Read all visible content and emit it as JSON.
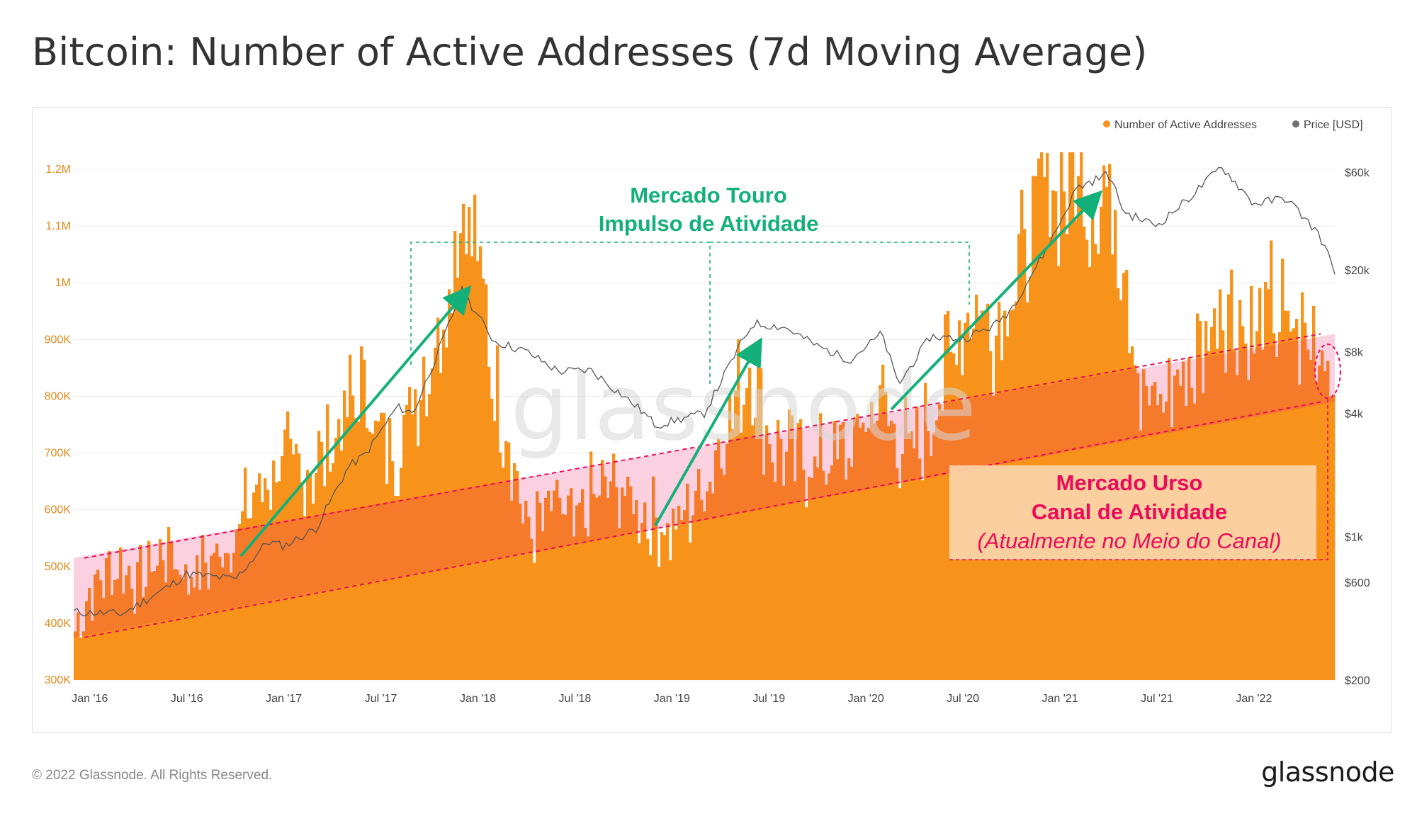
{
  "title": "Bitcoin: Number of Active Addresses (7d Moving Average)",
  "footer": {
    "copyright": "© 2022 Glassnode. All Rights Reserved.",
    "logo": "glassnode"
  },
  "watermark": "glassnode",
  "legend": {
    "items": [
      {
        "label": "Number of Active Addresses",
        "color": "#f7931a"
      },
      {
        "label": "Price [USD]",
        "color": "#707070"
      }
    ]
  },
  "annotations": {
    "bull_title_1": "Mercado Touro",
    "bull_title_2": "Impulso de Atividade",
    "bear_title_1": "Mercado Urso",
    "bear_title_2": "Canal de Atividade",
    "bear_note": "(Atualmente no Meio do Canal)"
  },
  "colors": {
    "bars": "#f7931a",
    "bars_dark": "#f57a2a",
    "channel_fill": "#fbd0e0",
    "channel_line": "#ec0a5a",
    "bull_green": "#14b07a",
    "price_line": "#555555",
    "left_axis_text": "#e08a1a",
    "right_axis_text": "#444444"
  },
  "chart_data": {
    "type": "bar",
    "xlabel": "",
    "ylabel": "",
    "x_ticks": [
      "Jan '16",
      "Jul '16",
      "Jan '17",
      "Jul '17",
      "Jan '18",
      "Jul '18",
      "Jan '19",
      "Jul '19",
      "Jan '20",
      "Jul '20",
      "Jan '21",
      "Jul '21",
      "Jan '22"
    ],
    "y_left_ticks": [
      "300K",
      "400K",
      "500K",
      "600K",
      "700K",
      "800K",
      "900K",
      "1M",
      "1.1M",
      "1.2M"
    ],
    "y_right_ticks": [
      "$200",
      "$600",
      "$1k",
      "$4k",
      "$8k",
      "$20k",
      "$60k"
    ],
    "ylim_left": [
      300000,
      1230000
    ],
    "y_right_scale": "log",
    "ylim_right": [
      200,
      75000
    ],
    "x_range": [
      "2015-12",
      "2022-06"
    ],
    "series": [
      {
        "name": "Number of Active Addresses",
        "axis": "left",
        "x": [
          "2015-12",
          "2016-01",
          "2016-02",
          "2016-03",
          "2016-04",
          "2016-05",
          "2016-06",
          "2016-07",
          "2016-08",
          "2016-09",
          "2016-10",
          "2016-11",
          "2016-12",
          "2017-01",
          "2017-02",
          "2017-03",
          "2017-04",
          "2017-05",
          "2017-06",
          "2017-07",
          "2017-08",
          "2017-09",
          "2017-10",
          "2017-11",
          "2017-12",
          "2018-01",
          "2018-02",
          "2018-03",
          "2018-04",
          "2018-05",
          "2018-06",
          "2018-07",
          "2018-08",
          "2018-09",
          "2018-10",
          "2018-11",
          "2018-12",
          "2019-01",
          "2019-02",
          "2019-03",
          "2019-04",
          "2019-05",
          "2019-06",
          "2019-07",
          "2019-08",
          "2019-09",
          "2019-10",
          "2019-11",
          "2019-12",
          "2020-01",
          "2020-02",
          "2020-03",
          "2020-04",
          "2020-05",
          "2020-06",
          "2020-07",
          "2020-08",
          "2020-09",
          "2020-10",
          "2020-11",
          "2020-12",
          "2021-01",
          "2021-02",
          "2021-03",
          "2021-04",
          "2021-05",
          "2021-06",
          "2021-07",
          "2021-08",
          "2021-09",
          "2021-10",
          "2021-11",
          "2021-12",
          "2022-01",
          "2022-02",
          "2022-03",
          "2022-04",
          "2022-05",
          "2022-06"
        ],
        "values": [
          380000,
          450000,
          490000,
          500000,
          470000,
          510000,
          530000,
          480000,
          500000,
          520000,
          560000,
          620000,
          650000,
          690000,
          660000,
          680000,
          720000,
          780000,
          820000,
          720000,
          700000,
          800000,
          860000,
          960000,
          1150000,
          1050000,
          820000,
          720000,
          560000,
          580000,
          610000,
          560000,
          620000,
          640000,
          630000,
          600000,
          580000,
          560000,
          600000,
          640000,
          720000,
          800000,
          860000,
          720000,
          700000,
          690000,
          680000,
          700000,
          700000,
          760000,
          800000,
          720000,
          700000,
          760000,
          860000,
          940000,
          960000,
          920000,
          1000000,
          1060000,
          1180000,
          1160000,
          1200000,
          1140000,
          1160000,
          1060000,
          800000,
          780000,
          820000,
          840000,
          900000,
          980000,
          940000,
          900000,
          960000,
          920000,
          900000,
          900000,
          860000
        ]
      },
      {
        "name": "Price [USD]",
        "axis": "right",
        "x": [
          "2015-12",
          "2016-03",
          "2016-06",
          "2016-07",
          "2016-10",
          "2016-12",
          "2017-01",
          "2017-03",
          "2017-05",
          "2017-06",
          "2017-08",
          "2017-09",
          "2017-11",
          "2017-12",
          "2018-02",
          "2018-04",
          "2018-06",
          "2018-08",
          "2018-11",
          "2018-12",
          "2019-03",
          "2019-05",
          "2019-06",
          "2019-08",
          "2019-10",
          "2019-12",
          "2020-02",
          "2020-03",
          "2020-05",
          "2020-07",
          "2020-09",
          "2020-10",
          "2020-12",
          "2021-01",
          "2021-02",
          "2021-04",
          "2021-05",
          "2021-07",
          "2021-09",
          "2021-11",
          "2022-01",
          "2022-03",
          "2022-05",
          "2022-06"
        ],
        "values": [
          430,
          420,
          580,
          660,
          620,
          950,
          900,
          1100,
          2200,
          2500,
          4300,
          4000,
          9800,
          16000,
          9000,
          8000,
          6400,
          6500,
          4200,
          3500,
          4000,
          8000,
          11000,
          10500,
          8500,
          7300,
          9800,
          5500,
          9500,
          9200,
          10800,
          13000,
          24000,
          34000,
          50000,
          59000,
          38000,
          33000,
          45000,
          64000,
          42000,
          45000,
          30000,
          20000
        ]
      }
    ],
    "channel": {
      "upper": [
        {
          "x": "2015-12",
          "y": 515000
        },
        {
          "x": "2022-06",
          "y": 910000
        }
      ],
      "lower": [
        {
          "x": "2015-12",
          "y": 375000
        },
        {
          "x": "2022-06",
          "y": 790000
        }
      ]
    },
    "legend_position": "top-right",
    "grid": true
  }
}
